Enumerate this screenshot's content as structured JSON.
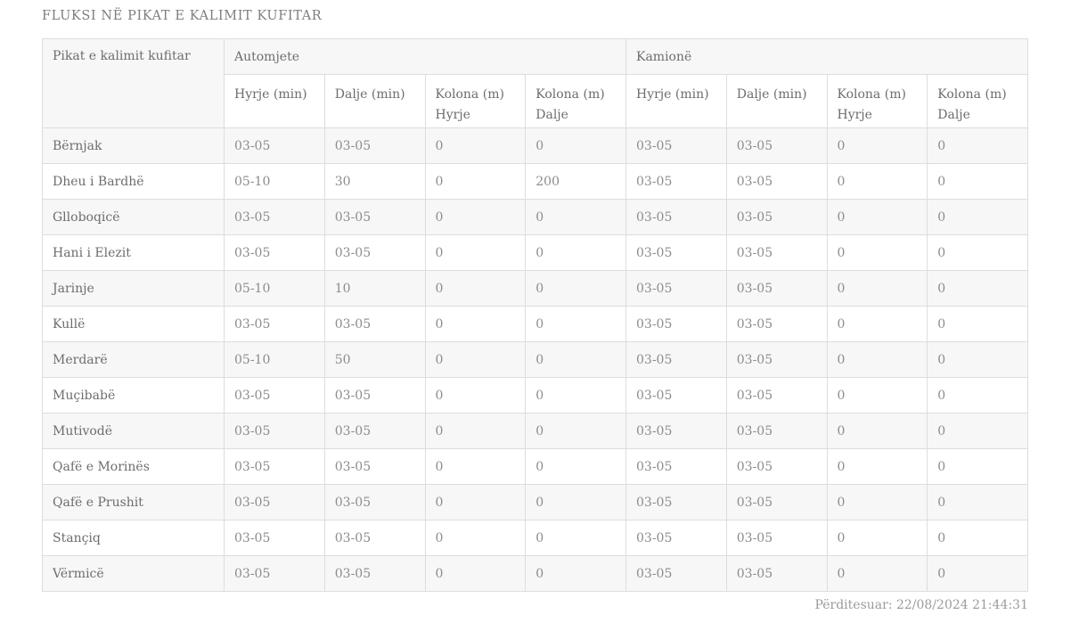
{
  "page": {
    "title": "FLUKSI NË PIKAT E KALIMIT KUFITAR",
    "updated": "Përditesuar: 22/08/2024 21:44:31"
  },
  "colors": {
    "stripe_row": "#f7f7f7",
    "header_bg": "#f7f7f7",
    "border": "#dddddd",
    "text_primary": "#6d6d6d",
    "text_secondary": "#8c8c8c",
    "footer_text": "#9b9b9b"
  },
  "table": {
    "corner_header": "Pikat e kalimit kufitar",
    "groups": [
      {
        "label": "Automjete",
        "columns": [
          "Hyrje (min)",
          "Dalje (min)",
          "Kolona (m) Hyrje",
          "Kolona (m) Dalje"
        ]
      },
      {
        "label": "Kamionë",
        "columns": [
          "Hyrje (min)",
          "Dalje (min)",
          "Kolona (m) Hyrje",
          "Kolona (m) Dalje"
        ]
      }
    ],
    "rows": [
      {
        "name": "Bërnjak",
        "values": [
          "03-05",
          "03-05",
          "0",
          "0",
          "03-05",
          "03-05",
          "0",
          "0"
        ]
      },
      {
        "name": "Dheu i Bardhë",
        "values": [
          "05-10",
          "30",
          "0",
          "200",
          "03-05",
          "03-05",
          "0",
          "0"
        ]
      },
      {
        "name": "Glloboqicë",
        "values": [
          "03-05",
          "03-05",
          "0",
          "0",
          "03-05",
          "03-05",
          "0",
          "0"
        ]
      },
      {
        "name": "Hani i Elezit",
        "values": [
          "03-05",
          "03-05",
          "0",
          "0",
          "03-05",
          "03-05",
          "0",
          "0"
        ]
      },
      {
        "name": "Jarinje",
        "values": [
          "05-10",
          "10",
          "0",
          "0",
          "03-05",
          "03-05",
          "0",
          "0"
        ]
      },
      {
        "name": "Kullë",
        "values": [
          "03-05",
          "03-05",
          "0",
          "0",
          "03-05",
          "03-05",
          "0",
          "0"
        ]
      },
      {
        "name": "Merdarë",
        "values": [
          "05-10",
          "50",
          "0",
          "0",
          "03-05",
          "03-05",
          "0",
          "0"
        ]
      },
      {
        "name": "Muçibabë",
        "values": [
          "03-05",
          "03-05",
          "0",
          "0",
          "03-05",
          "03-05",
          "0",
          "0"
        ]
      },
      {
        "name": "Mutivodë",
        "values": [
          "03-05",
          "03-05",
          "0",
          "0",
          "03-05",
          "03-05",
          "0",
          "0"
        ]
      },
      {
        "name": "Qafë e Morinës",
        "values": [
          "03-05",
          "03-05",
          "0",
          "0",
          "03-05",
          "03-05",
          "0",
          "0"
        ]
      },
      {
        "name": "Qafë e Prushit",
        "values": [
          "03-05",
          "03-05",
          "0",
          "0",
          "03-05",
          "03-05",
          "0",
          "0"
        ]
      },
      {
        "name": "Stançiq",
        "values": [
          "03-05",
          "03-05",
          "0",
          "0",
          "03-05",
          "03-05",
          "0",
          "0"
        ]
      },
      {
        "name": "Vërmicë",
        "values": [
          "03-05",
          "03-05",
          "0",
          "0",
          "03-05",
          "03-05",
          "0",
          "0"
        ]
      }
    ]
  }
}
